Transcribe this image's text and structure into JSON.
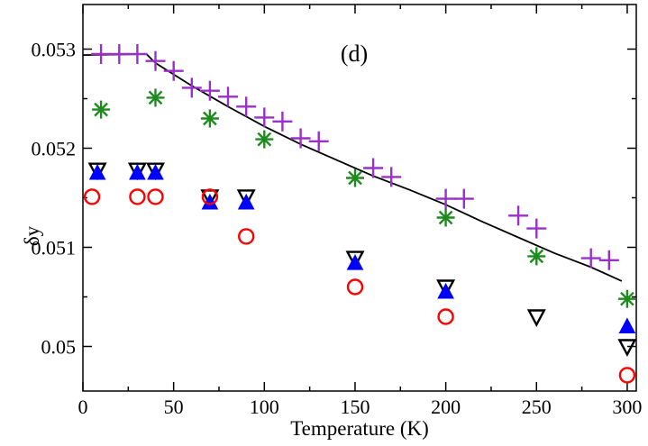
{
  "chart_data": {
    "type": "scatter",
    "panel_label": "(d)",
    "xlabel": "Temperature (K)",
    "ylabel": "δy",
    "xlim": [
      0,
      305
    ],
    "ylim": [
      0.04955,
      0.05345
    ],
    "xticks": [
      0,
      50,
      100,
      150,
      200,
      250,
      300
    ],
    "xtick_labels": [
      "0",
      "50",
      "100",
      "150",
      "200",
      "250",
      "300"
    ],
    "yticks": [
      0.05,
      0.051,
      0.052,
      0.053
    ],
    "ytick_labels": [
      "0.05",
      "0.051",
      "0.052",
      "0.053"
    ],
    "series": [
      {
        "name": "plus-purple",
        "marker": "plus",
        "color": "#9a30c8",
        "x": [
          10,
          20,
          30,
          40,
          50,
          60,
          70,
          80,
          90,
          100,
          110,
          120,
          130,
          160,
          170,
          200,
          210,
          240,
          250,
          280,
          290
        ],
        "y": [
          0.05295,
          0.05295,
          0.05295,
          0.05288,
          0.05278,
          0.05261,
          0.05258,
          0.05252,
          0.05242,
          0.05231,
          0.05227,
          0.0521,
          0.05207,
          0.0518,
          0.05171,
          0.05149,
          0.05149,
          0.05132,
          0.05119,
          0.05089,
          0.05087
        ]
      },
      {
        "name": "star-green",
        "marker": "star",
        "color": "#1e8b1e",
        "x": [
          10,
          40,
          70,
          100,
          150,
          200,
          250,
          300
        ],
        "y": [
          0.05239,
          0.05251,
          0.0523,
          0.05209,
          0.0517,
          0.0513,
          0.05091,
          0.05048
        ]
      },
      {
        "name": "triangle-down-black",
        "marker": "triangle-down",
        "color": "#000000",
        "x": [
          8,
          30,
          40,
          70,
          90,
          150,
          200,
          250,
          300
        ],
        "y": [
          0.05178,
          0.05178,
          0.05178,
          0.05151,
          0.05151,
          0.05089,
          0.0506,
          0.0503,
          0.05
        ]
      },
      {
        "name": "triangle-up-blue",
        "marker": "triangle-up",
        "color": "#0000ff",
        "x": [
          8,
          30,
          40,
          70,
          90,
          150,
          200,
          300
        ],
        "y": [
          0.05175,
          0.05175,
          0.05175,
          0.05145,
          0.05145,
          0.05084,
          0.05055,
          0.0502
        ]
      },
      {
        "name": "circle-red",
        "marker": "circle",
        "color": "#ff0000",
        "x": [
          5,
          30,
          40,
          70,
          90,
          150,
          200,
          300
        ],
        "y": [
          0.05151,
          0.05151,
          0.05151,
          0.05151,
          0.05111,
          0.0506,
          0.0503,
          0.04971
        ]
      }
    ],
    "fit_line": {
      "name": "fit-line",
      "color": "#000000",
      "x": [
        0,
        35,
        40,
        60,
        80,
        100,
        120,
        140,
        160,
        180,
        200,
        220,
        240,
        260,
        280,
        297
      ],
      "y": [
        0.05294,
        0.05295,
        0.05286,
        0.05263,
        0.05242,
        0.05222,
        0.05204,
        0.05188,
        0.05172,
        0.05158,
        0.05143,
        0.05126,
        0.0511,
        0.05094,
        0.0508,
        0.05066
      ]
    }
  }
}
